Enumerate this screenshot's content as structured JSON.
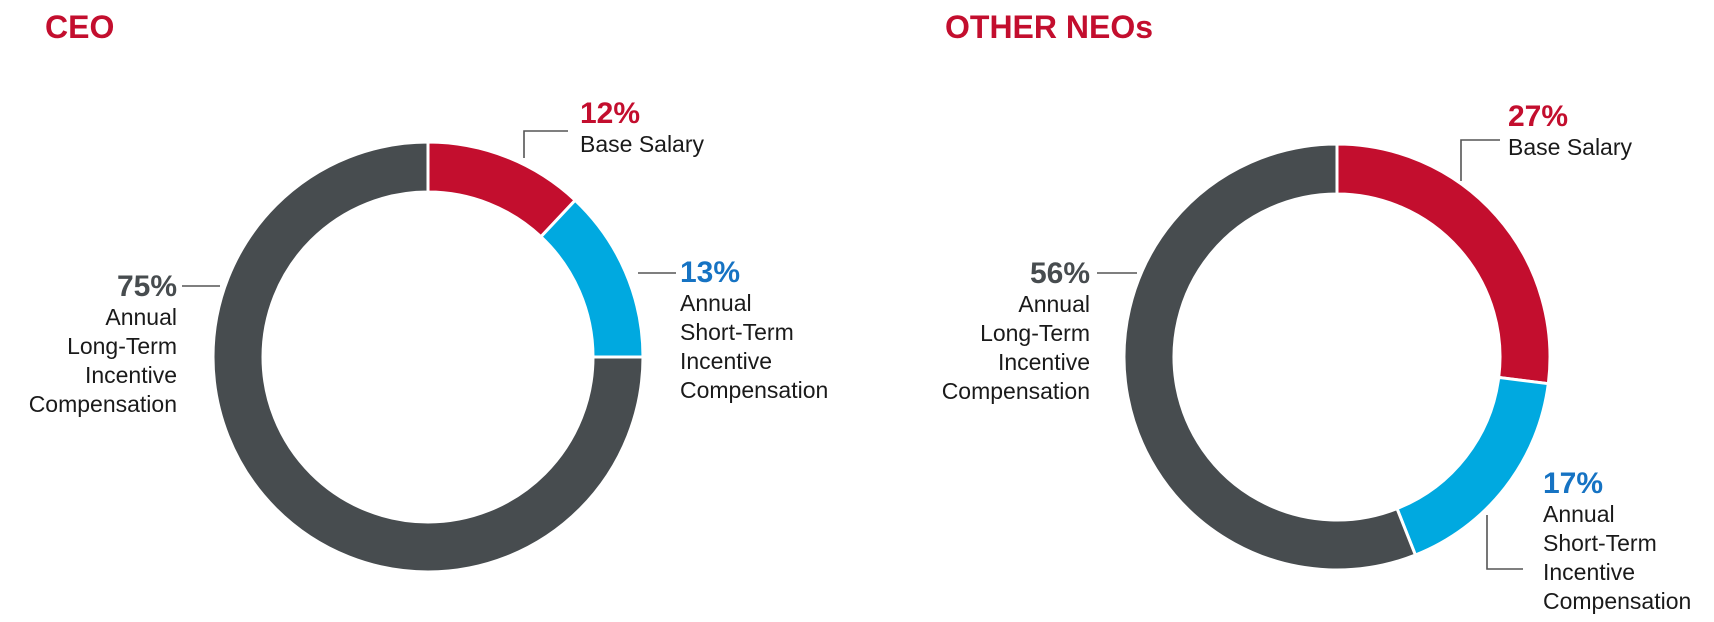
{
  "colors": {
    "title": "#c30e2e",
    "base_salary": "#c30e2e",
    "short_term": "#00a9e0",
    "long_term": "#474c4f",
    "short_term_text": "#1673c3"
  },
  "chart_data": [
    {
      "type": "pie",
      "title": "CEO",
      "slices": [
        {
          "percent_label": "12%",
          "value": 12,
          "label_lines": [
            "Base Salary"
          ],
          "color": "#c30e2e"
        },
        {
          "percent_label": "13%",
          "value": 13,
          "label_lines": [
            "Annual",
            "Short-Term",
            "Incentive",
            "Compensation"
          ],
          "color": "#00a9e0"
        },
        {
          "percent_label": "75%",
          "value": 75,
          "label_lines": [
            "Annual",
            "Long-Term",
            "Incentive",
            "Compensation"
          ],
          "color": "#474c4f"
        }
      ]
    },
    {
      "type": "pie",
      "title": "OTHER NEOs",
      "slices": [
        {
          "percent_label": "27%",
          "value": 27,
          "label_lines": [
            "Base Salary"
          ],
          "color": "#c30e2e"
        },
        {
          "percent_label": "17%",
          "value": 17,
          "label_lines": [
            "Annual",
            "Short-Term",
            "Incentive",
            "Compensation"
          ],
          "color": "#00a9e0"
        },
        {
          "percent_label": "56%",
          "value": 56,
          "label_lines": [
            "Annual",
            "Long-Term",
            "Incentive",
            "Compensation"
          ],
          "color": "#474c4f"
        }
      ]
    }
  ]
}
